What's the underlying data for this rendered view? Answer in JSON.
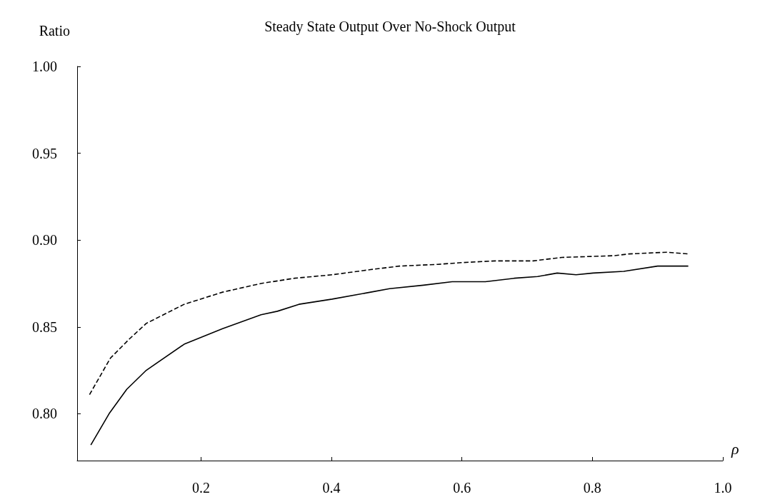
{
  "chart_data": {
    "type": "line",
    "title": "Steady State Output Over No-Shock Output",
    "xlabel": "ρ",
    "ylabel": "Ratio",
    "xlim": [
      0.01,
      1.0
    ],
    "xticks": [
      0.2,
      0.4,
      0.6,
      0.8,
      {
        "value": 1,
        "label": "1.0"
      }
    ],
    "ylim": [
      0.773,
      1.0
    ],
    "yticks": [
      {
        "value": 0.8,
        "label": "0.80"
      },
      0.85,
      {
        "value": 0.9,
        "label": "0.90"
      },
      0.95,
      {
        "value": 1,
        "label": "1.00"
      }
    ],
    "grid": false,
    "marker": "none",
    "series": [
      {
        "color": "#000000",
        "line_style": "solid",
        "x": [
          0.031,
          0.059,
          0.086,
          0.116,
          0.174,
          0.233,
          0.292,
          0.317,
          0.35,
          0.401,
          0.46,
          0.489,
          0.541,
          0.585,
          0.636,
          0.68,
          0.716,
          0.746,
          0.775,
          0.801,
          0.848,
          0.9,
          0.947
        ],
        "values": [
          0.782,
          0.8,
          0.814,
          0.825,
          0.84,
          0.849,
          0.857,
          0.859,
          0.863,
          0.866,
          0.87,
          0.872,
          0.874,
          0.876,
          0.876,
          0.878,
          0.879,
          0.881,
          0.88,
          0.881,
          0.882,
          0.885,
          0.885
        ]
      },
      {
        "color": "#000000",
        "line_style": "dashed",
        "x": [
          0.029,
          0.061,
          0.09,
          0.116,
          0.174,
          0.233,
          0.292,
          0.343,
          0.401,
          0.46,
          0.504,
          0.563,
          0.599,
          0.651,
          0.709,
          0.753,
          0.834,
          0.856,
          0.914,
          0.947
        ],
        "values": [
          0.811,
          0.832,
          0.843,
          0.852,
          0.863,
          0.87,
          0.875,
          0.878,
          0.88,
          0.883,
          0.885,
          0.886,
          0.887,
          0.888,
          0.888,
          0.89,
          0.891,
          0.892,
          0.893,
          0.892
        ]
      }
    ]
  }
}
